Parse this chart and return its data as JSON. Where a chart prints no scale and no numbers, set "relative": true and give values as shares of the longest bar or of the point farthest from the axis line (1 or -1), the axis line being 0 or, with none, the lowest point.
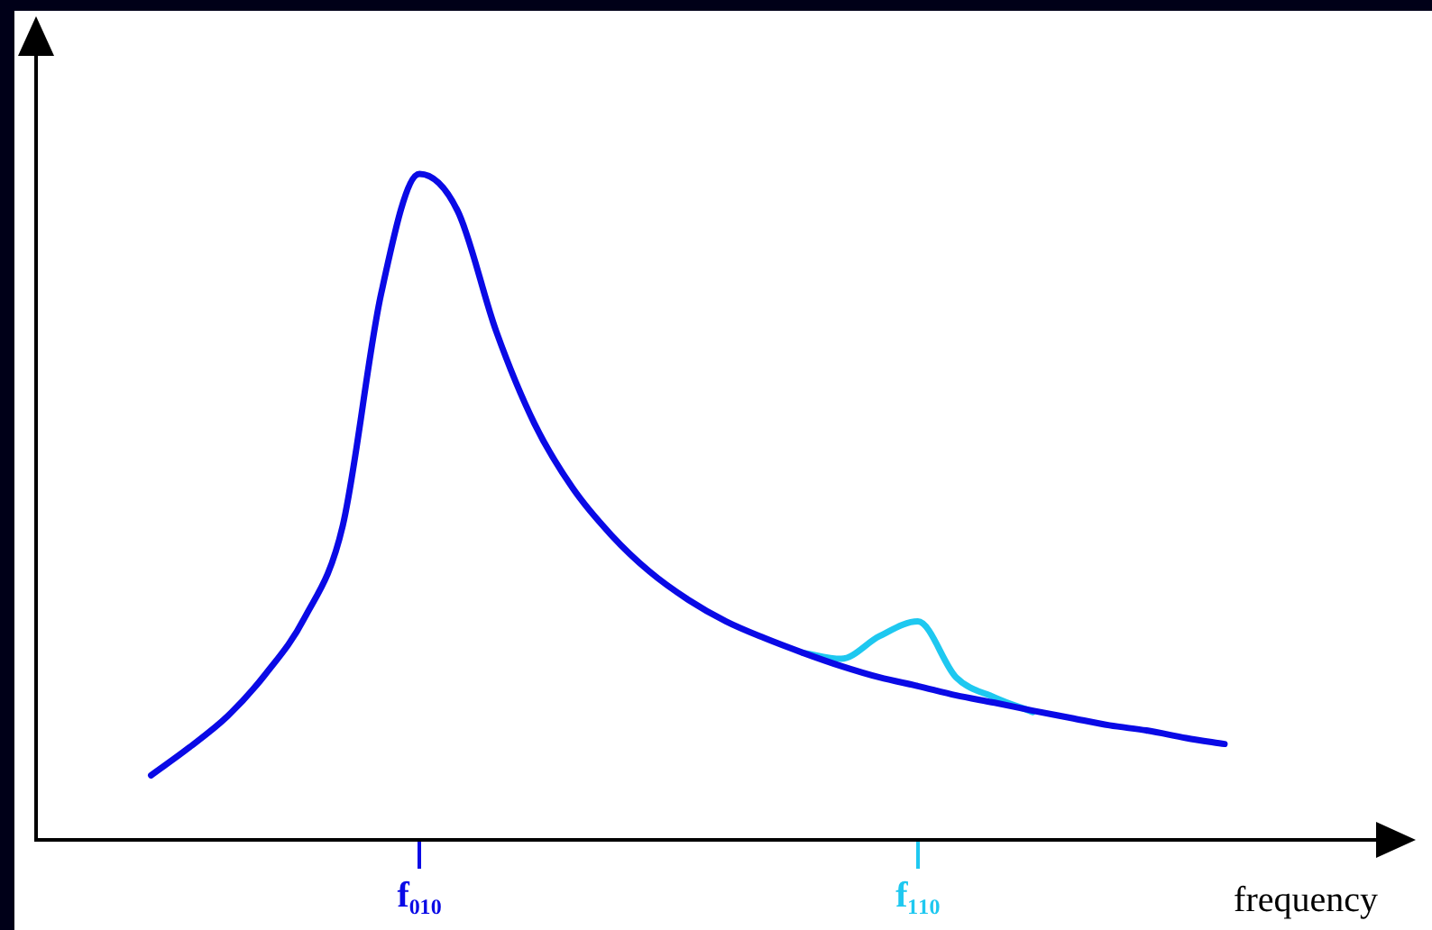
{
  "chart_data": {
    "type": "line",
    "relative": true,
    "xlabel": "frequency",
    "categories": [
      null,
      null,
      null,
      null,
      null,
      null,
      null,
      null,
      null,
      null,
      "f₀₁₀",
      null,
      null,
      null,
      null,
      null,
      null,
      null,
      null,
      null,
      null,
      null,
      null,
      "f₁₁₀",
      null,
      null,
      null,
      null,
      null,
      null,
      null,
      null,
      null,
      null,
      null,
      null
    ],
    "series": [
      {
        "color": "#0a0ae6",
        "values": [
          null,
          null,
          null,
          0.097,
          0.139,
          0.186,
          0.25,
          0.333,
          0.472,
          0.82,
          1.0,
          0.944,
          0.764,
          0.625,
          0.528,
          0.458,
          0.403,
          0.361,
          0.328,
          0.303,
          0.281,
          0.261,
          0.244,
          0.231,
          0.217,
          0.206,
          0.194,
          0.183,
          0.172,
          0.164,
          0.153,
          0.144,
          null,
          null,
          null,
          null
        ]
      },
      {
        "color": "#1ec8f0",
        "values": [
          null,
          null,
          null,
          null,
          null,
          null,
          null,
          null,
          null,
          null,
          null,
          null,
          null,
          null,
          null,
          null,
          null,
          null,
          null,
          null,
          0.281,
          0.272,
          0.306,
          0.328,
          0.244,
          0.214,
          0.192,
          null,
          null,
          null,
          null,
          null,
          null,
          null,
          null,
          null
        ]
      }
    ],
    "grid": false,
    "legend": false,
    "marker": "none",
    "line_style": "solid"
  }
}
